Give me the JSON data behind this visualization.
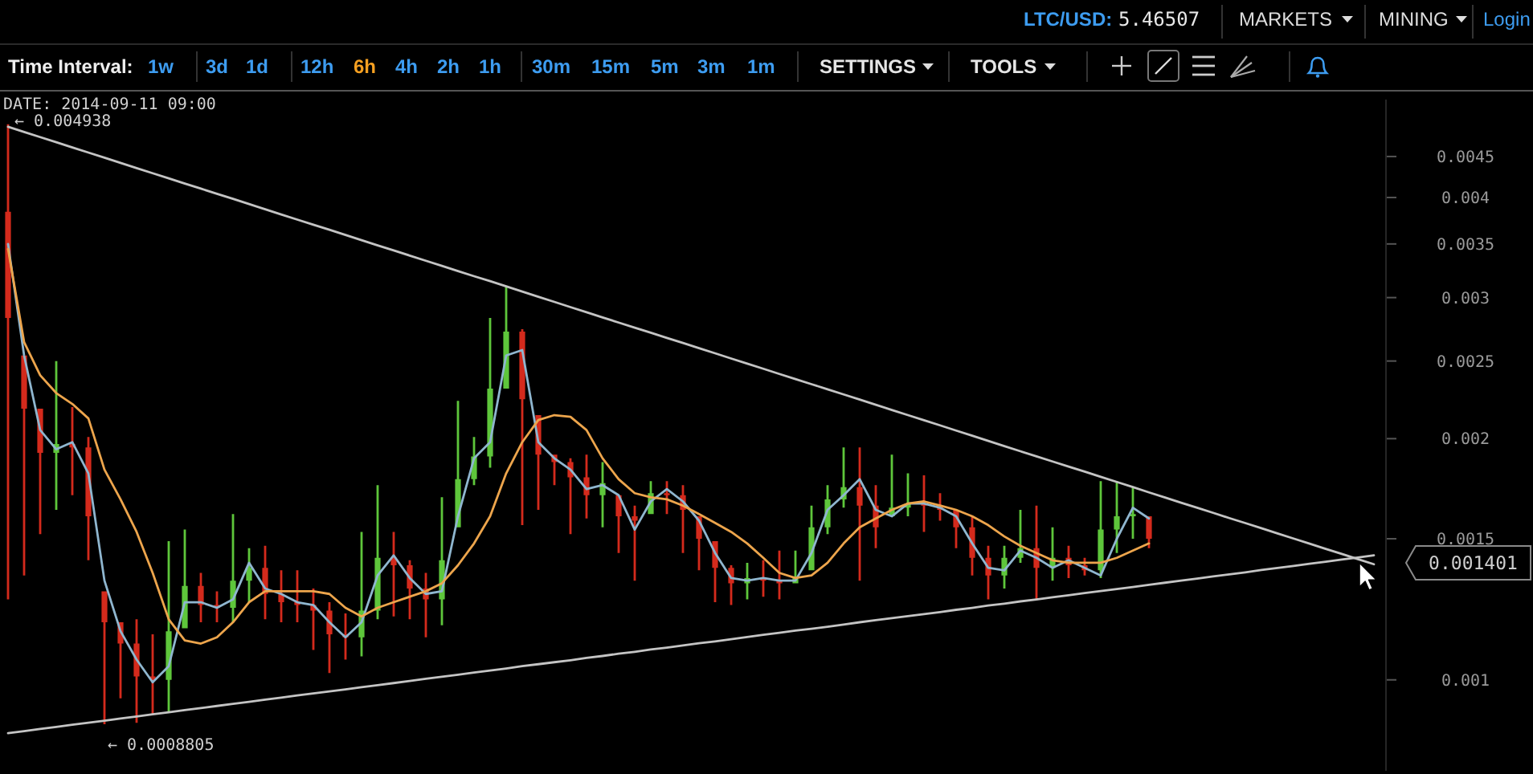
{
  "chart_data": {
    "type": "candlestick",
    "categories": [
      null,
      null,
      null,
      null,
      null,
      null,
      null,
      null,
      null,
      null,
      null,
      null,
      null,
      null,
      null,
      null,
      null,
      null,
      null,
      null,
      null,
      null,
      null,
      null,
      null,
      null,
      null,
      null,
      null,
      null,
      null,
      null,
      null,
      null,
      null,
      null,
      null,
      null,
      null,
      null,
      null,
      null,
      null,
      null,
      null,
      null,
      null,
      null,
      null,
      null,
      null,
      null,
      null,
      null,
      null,
      null,
      null,
      null,
      null,
      null,
      null,
      null,
      null,
      null,
      null,
      null,
      null,
      null,
      null,
      null,
      null,
      null,
      null,
      null,
      null,
      null,
      null,
      null,
      null,
      null,
      null,
      null,
      null,
      null,
      null,
      null
    ],
    "ohlc": [
      [
        0.00384,
        0.004938,
        0.00126,
        0.00283
      ],
      [
        0.00254,
        0.00254,
        0.00135,
        0.00218
      ],
      [
        0.00218,
        0.00218,
        0.00152,
        0.00192
      ],
      [
        0.00192,
        0.0025,
        0.00163,
        0.00197
      ],
      [
        0.00197,
        0.00219,
        0.0017,
        0.00195
      ],
      [
        0.00195,
        0.00201,
        0.00141,
        0.0016
      ],
      [
        0.00129,
        0.00129,
        0.0008805,
        0.00118
      ],
      [
        0.00118,
        0.00118,
        0.000948,
        0.00111
      ],
      [
        0.00111,
        0.00119,
        0.000884,
        0.00101
      ],
      [
        0.00101,
        0.00114,
        0.000905,
        0.001
      ],
      [
        0.001,
        0.00149,
        0.000912,
        0.00115
      ],
      [
        0.00116,
        0.00154,
        0.00116,
        0.00131
      ],
      [
        0.00131,
        0.00136,
        0.00118,
        0.00124
      ],
      [
        0.00124,
        0.00129,
        0.00118,
        0.00123
      ],
      [
        0.00123,
        0.00161,
        0.00118,
        0.00133
      ],
      [
        0.00133,
        0.00146,
        0.00125,
        0.00138
      ],
      [
        0.00138,
        0.00147,
        0.00119,
        0.00128
      ],
      [
        0.00128,
        0.00137,
        0.00118,
        0.00125
      ],
      [
        0.00125,
        0.00137,
        0.00118,
        0.00124
      ],
      [
        0.00124,
        0.0013,
        0.00109,
        0.00122
      ],
      [
        0.00122,
        0.00125,
        0.00102,
        0.00114
      ],
      [
        0.00114,
        0.00121,
        0.00106,
        0.00113
      ],
      [
        0.00113,
        0.00153,
        0.00107,
        0.00122
      ],
      [
        0.00122,
        0.00175,
        0.00119,
        0.00142
      ],
      [
        0.00142,
        0.00153,
        0.0012,
        0.00139
      ],
      [
        0.00139,
        0.00141,
        0.00119,
        0.0013
      ],
      [
        0.0013,
        0.00136,
        0.00113,
        0.00126
      ],
      [
        0.00126,
        0.00169,
        0.00117,
        0.00141
      ],
      [
        0.00155,
        0.00223,
        0.00155,
        0.00178
      ],
      [
        0.00178,
        0.00201,
        0.00175,
        0.0019
      ],
      [
        0.0019,
        0.00283,
        0.00184,
        0.00231
      ],
      [
        0.00231,
        0.0031,
        0.00231,
        0.00272
      ],
      [
        0.00272,
        0.00274,
        0.00156,
        0.00224
      ],
      [
        0.00214,
        0.00214,
        0.00163,
        0.00191
      ],
      [
        0.00191,
        0.00191,
        0.00175,
        0.00187
      ],
      [
        0.00187,
        0.00189,
        0.00152,
        0.00179
      ],
      [
        0.00179,
        0.00191,
        0.00159,
        0.0017
      ],
      [
        0.0017,
        0.00187,
        0.00155,
        0.00176
      ],
      [
        0.0017,
        0.0017,
        0.00144,
        0.0016
      ],
      [
        0.0016,
        0.00165,
        0.00133,
        0.00158
      ],
      [
        0.00161,
        0.00177,
        0.00161,
        0.00171
      ],
      [
        0.00171,
        0.00177,
        0.00161,
        0.0017
      ],
      [
        0.0017,
        0.00175,
        0.00144,
        0.00163
      ],
      [
        0.0016,
        0.0016,
        0.00137,
        0.0015
      ],
      [
        0.00149,
        0.00149,
        0.00125,
        0.00138
      ],
      [
        0.00138,
        0.00139,
        0.00124,
        0.00132
      ],
      [
        0.00132,
        0.0014,
        0.00126,
        0.00134
      ],
      [
        0.00134,
        0.00141,
        0.00127,
        0.00133
      ],
      [
        0.00133,
        0.00145,
        0.00126,
        0.00132
      ],
      [
        0.00132,
        0.00145,
        0.00132,
        0.00134
      ],
      [
        0.00137,
        0.00165,
        0.00137,
        0.00155
      ],
      [
        0.00155,
        0.00175,
        0.00152,
        0.00168
      ],
      [
        0.00168,
        0.00195,
        0.00164,
        0.00174
      ],
      [
        0.00174,
        0.00195,
        0.00133,
        0.00165
      ],
      [
        0.00165,
        0.00175,
        0.00146,
        0.00155
      ],
      [
        0.0016,
        0.00191,
        0.0016,
        0.00164
      ],
      [
        0.00164,
        0.00181,
        0.0016,
        0.00166
      ],
      [
        0.00166,
        0.0018,
        0.00153,
        0.00165
      ],
      [
        0.00165,
        0.00171,
        0.00158,
        0.00163
      ],
      [
        0.00163,
        0.00163,
        0.00146,
        0.00155
      ],
      [
        0.00155,
        0.0016,
        0.00135,
        0.00142
      ],
      [
        0.00142,
        0.00147,
        0.00126,
        0.00135
      ],
      [
        0.00135,
        0.00147,
        0.0013,
        0.00142
      ],
      [
        0.00142,
        0.00163,
        0.0014,
        0.00146
      ],
      [
        0.00146,
        0.00165,
        0.00126,
        0.00138
      ],
      [
        0.00138,
        0.00155,
        0.00133,
        0.00142
      ],
      [
        0.00142,
        0.00147,
        0.00134,
        0.00139
      ],
      [
        0.00139,
        0.00142,
        0.00135,
        0.00137
      ],
      [
        0.00137,
        0.00177,
        0.00134,
        0.00154
      ],
      [
        0.00154,
        0.00177,
        0.00144,
        0.0016
      ],
      [
        0.0016,
        0.00174,
        0.0015,
        0.00161
      ],
      [
        0.0016,
        0.0016,
        0.00146,
        0.0015
      ],
      null,
      null,
      null,
      null,
      null,
      null,
      null,
      null,
      null,
      null,
      null,
      null,
      null,
      null
    ],
    "colors": [
      "#d42a1c",
      "#d42a1c",
      "#d42a1c",
      "#5ec63b",
      "#d42a1c",
      "#d42a1c",
      "#d42a1c",
      "#d42a1c",
      "#d42a1c",
      "#d42a1c",
      "#5ec63b",
      "#5ec63b",
      "#d42a1c",
      "#d42a1c",
      "#5ec63b",
      "#5ec63b",
      "#d42a1c",
      "#d42a1c",
      "#d42a1c",
      "#d42a1c",
      "#d42a1c",
      "#d42a1c",
      "#5ec63b",
      "#5ec63b",
      "#d42a1c",
      "#d42a1c",
      "#d42a1c",
      "#5ec63b",
      "#5ec63b",
      "#5ec63b",
      "#5ec63b",
      "#5ec63b",
      "#d42a1c",
      "#d42a1c",
      "#d42a1c",
      "#d42a1c",
      "#d42a1c",
      "#5ec63b",
      "#d42a1c",
      "#d42a1c",
      "#5ec63b",
      "#d42a1c",
      "#d42a1c",
      "#d42a1c",
      "#d42a1c",
      "#d42a1c",
      "#5ec63b",
      "#d42a1c",
      "#d42a1c",
      "#5ec63b",
      "#5ec63b",
      "#5ec63b",
      "#5ec63b",
      "#d42a1c",
      "#d42a1c",
      "#5ec63b",
      "#5ec63b",
      "#d42a1c",
      "#d42a1c",
      "#d42a1c",
      "#d42a1c",
      "#d42a1c",
      "#5ec63b",
      "#5ec63b",
      "#d42a1c",
      "#5ec63b",
      "#d42a1c",
      "#d42a1c",
      "#5ec63b",
      "#5ec63b",
      "#5ec63b",
      "#d42a1c",
      null,
      null,
      null,
      null,
      null,
      null,
      null,
      null,
      null,
      null,
      null,
      null,
      null,
      null
    ],
    "series": [
      {
        "type": "line",
        "color": "#8fb6cf",
        "values": [
          0.0035,
          0.00254,
          0.00205,
          0.00194,
          0.00198,
          0.00181,
          0.00133,
          0.00115,
          0.00106,
          0.000993,
          0.00104,
          0.00125,
          0.00125,
          0.00123,
          0.00126,
          0.0014,
          0.0013,
          0.00128,
          0.00125,
          0.00124,
          0.00118,
          0.00113,
          0.00118,
          0.00135,
          0.00143,
          0.00134,
          0.00128,
          0.00129,
          0.0016,
          0.00189,
          0.00198,
          0.00254,
          0.00258,
          0.00198,
          0.00189,
          0.00183,
          0.00173,
          0.00175,
          0.0017,
          0.00154,
          0.00167,
          0.00173,
          0.00167,
          0.00158,
          0.00144,
          0.00134,
          0.00133,
          0.00134,
          0.00133,
          0.00133,
          0.00144,
          0.00163,
          0.0017,
          0.00178,
          0.00163,
          0.0016,
          0.00166,
          0.00166,
          0.00164,
          0.0016,
          0.00148,
          0.00138,
          0.00137,
          0.00145,
          0.00142,
          0.00138,
          0.00141,
          0.00138,
          0.00135,
          0.0015,
          0.00164,
          0.00159,
          null,
          null,
          null,
          null,
          null,
          null,
          null,
          null,
          null,
          null,
          null,
          null,
          null,
          null
        ]
      },
      {
        "type": "line",
        "color": "#eda54c",
        "values": [
          0.00345,
          0.00264,
          0.0024,
          0.00228,
          0.00221,
          0.00212,
          0.00183,
          0.00168,
          0.00153,
          0.00136,
          0.00119,
          0.00112,
          0.00111,
          0.00113,
          0.00118,
          0.00125,
          0.00129,
          0.00129,
          0.00129,
          0.00129,
          0.00128,
          0.00123,
          0.0012,
          0.00123,
          0.00125,
          0.00127,
          0.00129,
          0.00132,
          0.00139,
          0.00148,
          0.0016,
          0.00181,
          0.00198,
          0.00211,
          0.00214,
          0.00213,
          0.00205,
          0.00189,
          0.00178,
          0.00171,
          0.00169,
          0.00168,
          0.00165,
          0.00161,
          0.00157,
          0.00153,
          0.00148,
          0.00142,
          0.00136,
          0.00134,
          0.00135,
          0.0014,
          0.00148,
          0.00155,
          0.00159,
          0.00163,
          0.00166,
          0.00167,
          0.00165,
          0.00163,
          0.0016,
          0.00156,
          0.00151,
          0.00147,
          0.00144,
          0.00141,
          0.0014,
          0.0014,
          0.0014,
          0.00142,
          0.00145,
          0.00148,
          null,
          null,
          null,
          null,
          null,
          null,
          null,
          null,
          null,
          null,
          null,
          null,
          null,
          null
        ]
      },
      {
        "type": "line",
        "color": "#c4c4c4",
        "values": [
          0.004901,
          0.004829,
          0.004758,
          0.004688,
          0.004619,
          0.004551,
          0.004484,
          0.004418,
          0.004353,
          0.004289,
          0.004226,
          0.004164,
          0.004103,
          0.004043,
          0.003984,
          0.003925,
          0.003867,
          0.00381,
          0.003754,
          0.003699,
          0.003646,
          0.003591,
          0.003538,
          0.003486,
          0.003435,
          0.003385,
          0.003335,
          0.003286,
          0.003238,
          0.00319,
          0.003145,
          0.003098,
          0.003052,
          0.003007,
          0.002963,
          0.002919,
          0.002876,
          0.002834,
          0.002792,
          0.002751,
          0.002712,
          0.002672,
          0.002633,
          0.002594,
          0.002556,
          0.002518,
          0.002481,
          0.002445,
          0.002409,
          0.002374,
          0.002339,
          0.002305,
          0.002271,
          0.002238,
          0.002205,
          0.002172,
          0.00214,
          0.002109,
          0.002078,
          0.002047,
          0.002017,
          0.001987,
          0.001958,
          0.001929,
          0.001901,
          0.001873,
          0.001846,
          0.001819,
          0.001792,
          0.001766,
          0.00174,
          0.001714,
          0.001689,
          0.001664,
          0.00164,
          0.001616,
          0.001592,
          0.001569,
          0.001546,
          0.001523,
          0.001501,
          0.001479,
          0.001457,
          0.001436,
          0.001415,
          0.001394
        ]
      },
      {
        "type": "line",
        "color": "#c4c4c4",
        "values": [
          0.0008579,
          0.0008631,
          0.0008683,
          0.0008735,
          0.0008788,
          0.0008841,
          0.0008894,
          0.0008948,
          0.0009002,
          0.0009056,
          0.0009111,
          0.0009166,
          0.0009221,
          0.0009277,
          0.0009333,
          0.0009389,
          0.0009446,
          0.0009503,
          0.000956,
          0.0009616,
          0.0009673,
          0.0009731,
          0.000979,
          0.0009849,
          0.0009908,
          0.0009968,
          0.001003,
          0.001009,
          0.001015,
          0.001021,
          0.001027,
          0.001033,
          0.00104,
          0.001046,
          0.001052,
          0.001058,
          0.001065,
          0.001071,
          0.001078,
          0.001084,
          0.001091,
          0.001097,
          0.001104,
          0.001111,
          0.001117,
          0.001124,
          0.001131,
          0.001138,
          0.001145,
          0.001152,
          0.001158,
          0.001165,
          0.001172,
          0.00118,
          0.001187,
          0.001194,
          0.001201,
          0.001208,
          0.001215,
          0.001223,
          0.00123,
          0.001238,
          0.001245,
          0.001253,
          0.00126,
          0.001268,
          0.001275,
          0.001283,
          0.001291,
          0.001298,
          0.001306,
          0.001314,
          0.001322,
          0.00133,
          0.001338,
          0.001346,
          0.001354,
          0.001362,
          0.001371,
          0.001379,
          0.001387,
          0.001396,
          0.001404,
          0.001413,
          0.001421,
          0.00143
        ]
      }
    ],
    "log": "y",
    "ylim": [
      0.00077,
      0.0053
    ],
    "yticks": [
      0.001,
      0.0015,
      0.002,
      0.0025,
      0.003,
      0.0035,
      0.004,
      0.0045
    ],
    "tick_labels": "y",
    "annotations": [
      "LTC/USD:",
      "5.46507",
      "MARKETS",
      "MINING",
      "Login",
      "Time Interval:",
      "1w",
      "3d",
      "1d",
      "12h",
      "6h",
      "4h",
      "2h",
      "1h",
      "30m",
      "15m",
      "5m",
      "3m",
      "1m",
      "SETTINGS",
      "TOOLS",
      "DATE: 2014-09-11 09:00",
      "← 0.004938",
      "← 0.0008805",
      "0.001401"
    ]
  }
}
